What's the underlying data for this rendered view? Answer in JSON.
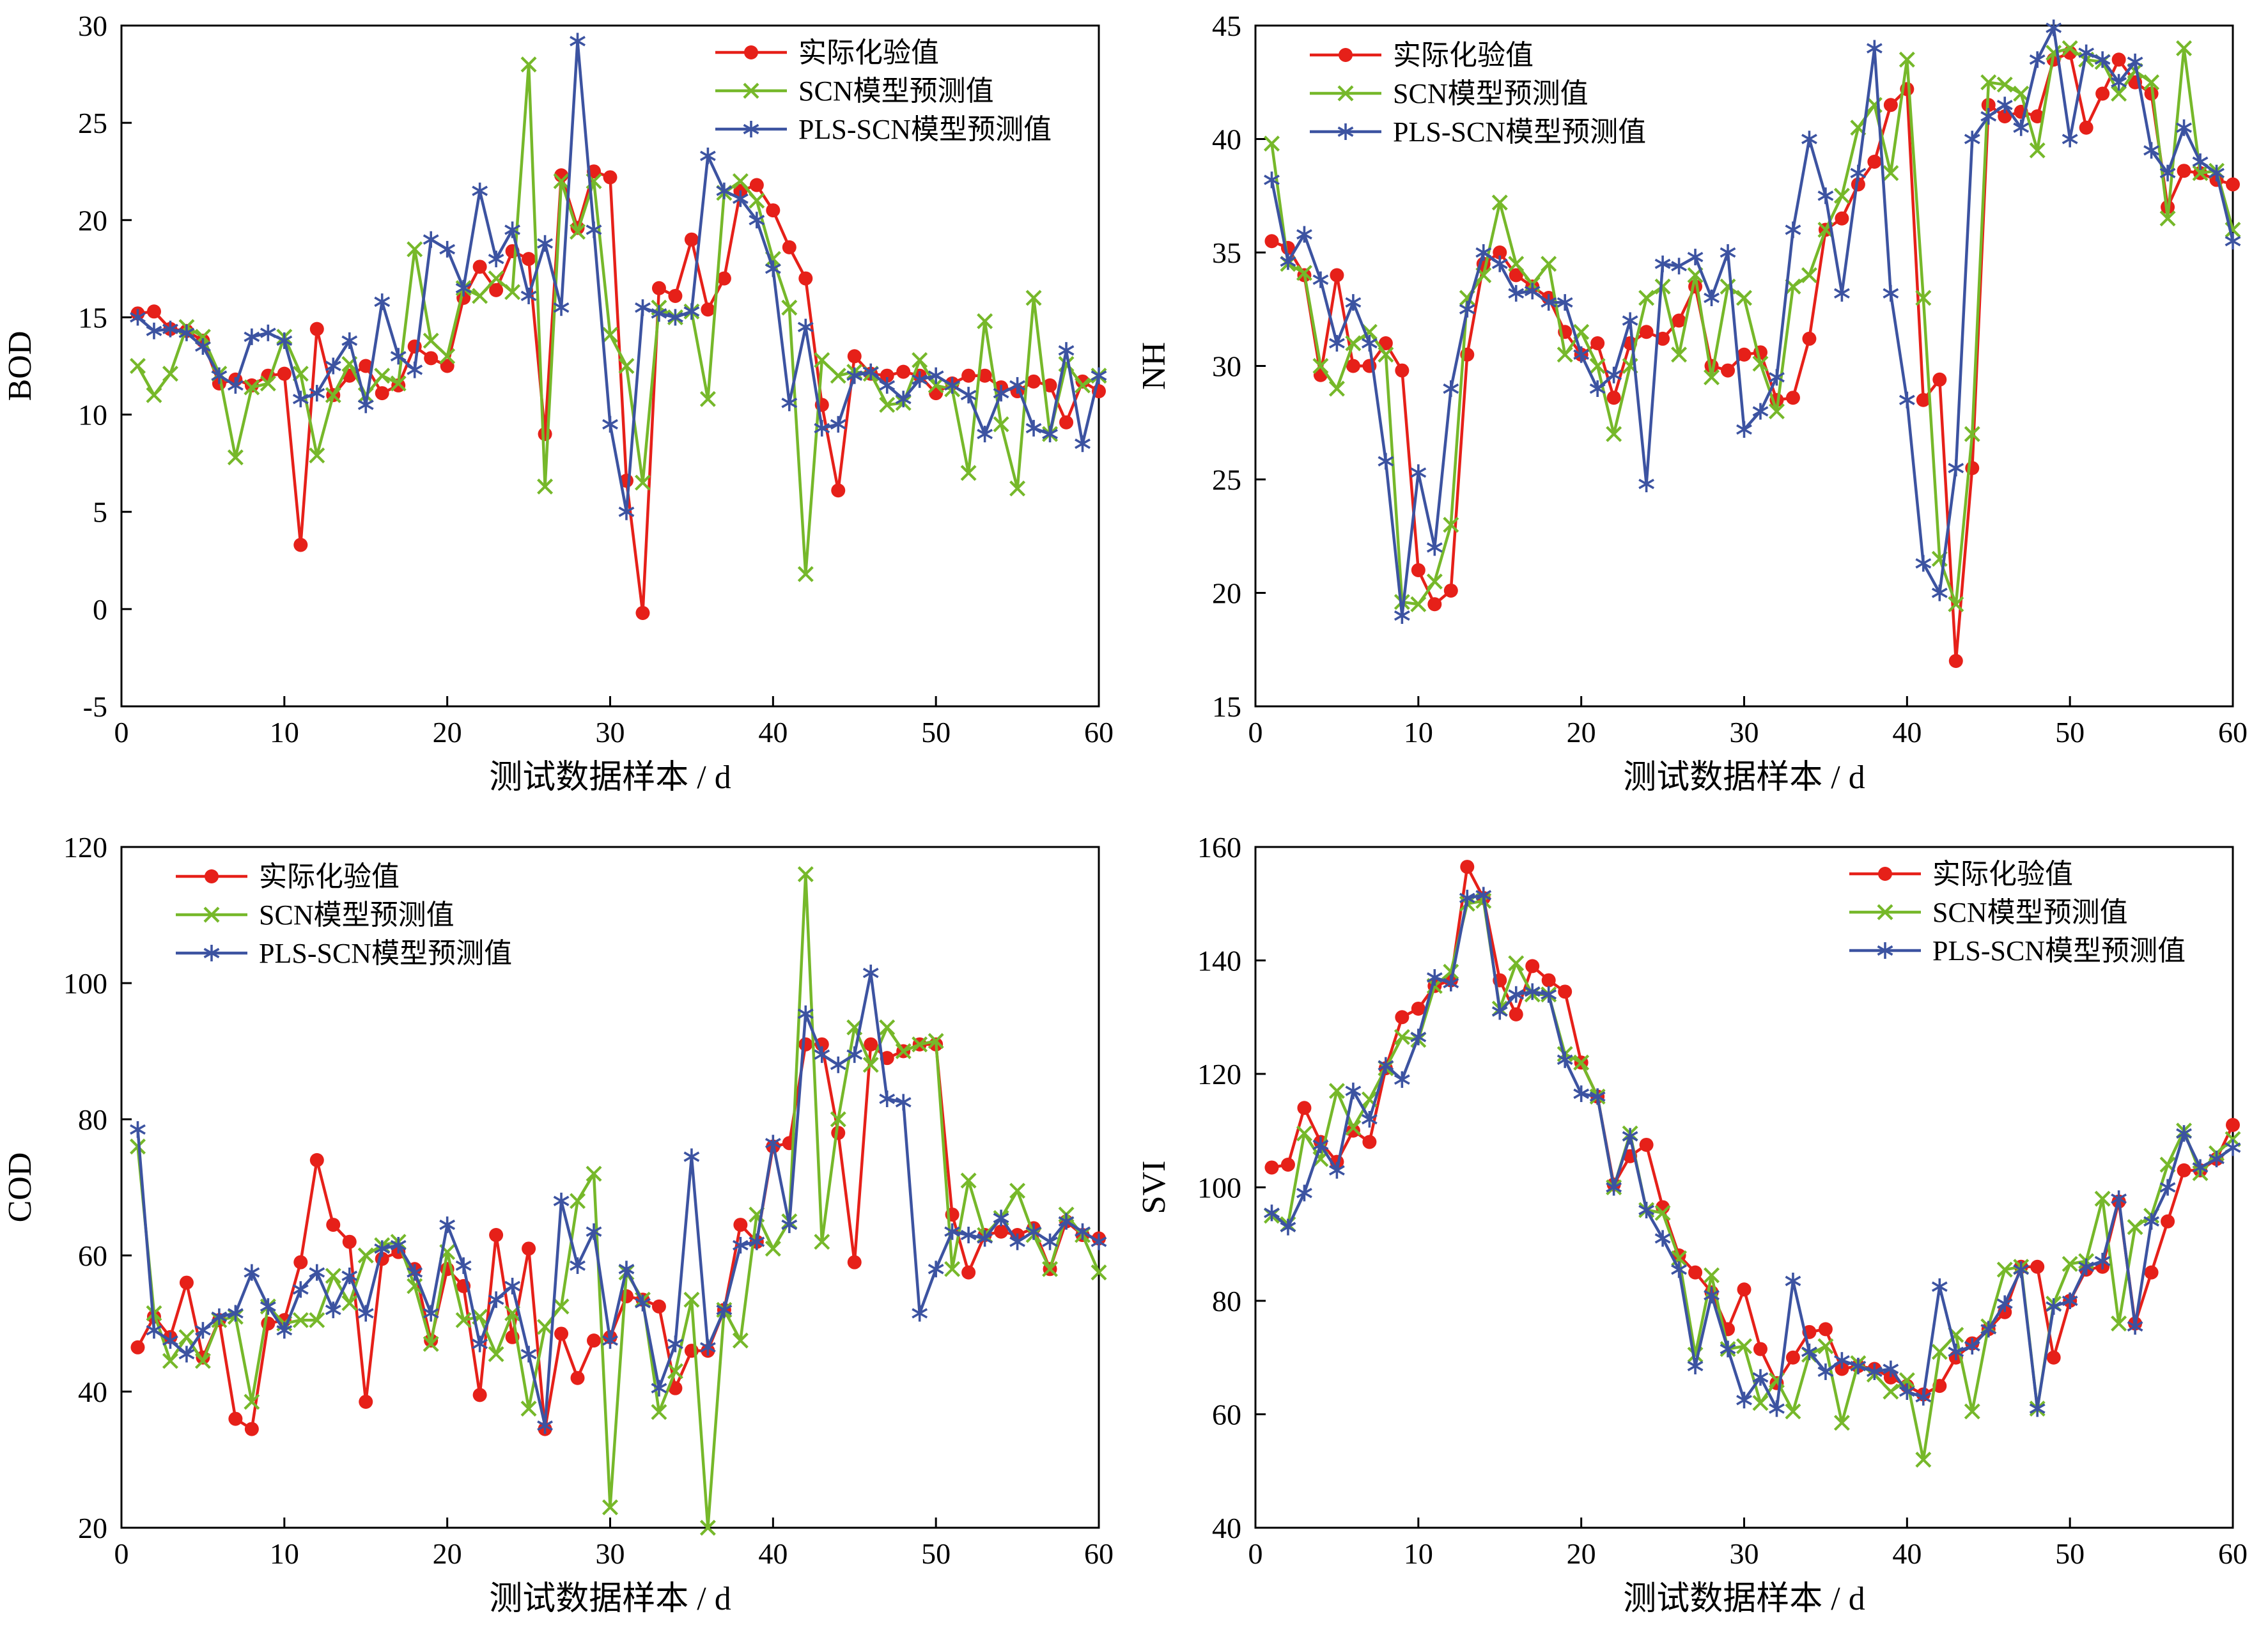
{
  "page": {
    "background": "#ffffff"
  },
  "colors": {
    "actual": "#e62019",
    "scn": "#76b82a",
    "pls_scn": "#3c53a1",
    "axis": "#000000"
  },
  "series_labels": {
    "actual": "实际化验值",
    "scn": "SCN模型预测值",
    "pls_scn": "PLS-SCN模型预测值"
  },
  "xlabel": "测试数据样本 / d",
  "chart_data": [
    {
      "id": "bod",
      "type": "line",
      "title": "",
      "ylabel": "BOD",
      "xlabel": "测试数据样本 / d",
      "xlim": [
        0,
        60
      ],
      "ylim": [
        -5,
        30
      ],
      "xticks": [
        0,
        10,
        20,
        30,
        40,
        50,
        60
      ],
      "yticks": [
        -5,
        0,
        5,
        10,
        15,
        20,
        25,
        30
      ],
      "grid": false,
      "legend_position": "top-right",
      "x_start": 1,
      "series": [
        {
          "name": "实际化验值",
          "color": "#e62019",
          "marker": "circle",
          "values": [
            15.2,
            15.3,
            14.4,
            14.3,
            13.8,
            11.6,
            11.8,
            11.5,
            12.0,
            12.1,
            3.3,
            14.4,
            11.0,
            12.0,
            12.5,
            11.1,
            11.5,
            13.5,
            12.9,
            12.5,
            16.0,
            17.6,
            16.4,
            18.4,
            18.0,
            9.0,
            22.3,
            19.6,
            22.5,
            22.2,
            6.6,
            -0.2,
            16.5,
            16.1,
            19.0,
            15.4,
            17.0,
            21.5,
            21.8,
            20.5,
            18.6,
            17.0,
            10.5,
            6.1,
            13.0,
            12.1,
            12.0,
            12.2,
            12.0,
            11.1,
            11.6,
            12.0,
            12.0,
            11.4,
            11.2,
            11.7,
            11.5,
            9.6,
            11.7,
            11.2
          ]
        },
        {
          "name": "SCN模型预测值",
          "color": "#76b82a",
          "marker": "x",
          "values": [
            12.5,
            11.0,
            12.1,
            14.5,
            14.0,
            12.1,
            7.8,
            11.4,
            11.6,
            14.0,
            12.1,
            7.9,
            11.0,
            12.6,
            11.0,
            12.0,
            11.6,
            18.5,
            13.8,
            13.0,
            16.5,
            16.1,
            17.0,
            16.3,
            28.0,
            6.3,
            22.0,
            19.4,
            22.0,
            14.1,
            12.5,
            6.5,
            15.5,
            15.0,
            15.3,
            10.8,
            21.4,
            22.0,
            21.0,
            18.0,
            15.5,
            1.8,
            12.8,
            12.0,
            12.2,
            12.1,
            10.5,
            10.6,
            12.8,
            11.5,
            11.3,
            7.0,
            14.8,
            9.5,
            6.2,
            16.0,
            9.0,
            12.6,
            11.5,
            12.0
          ]
        },
        {
          "name": "PLS-SCN模型预测值",
          "color": "#3c53a1",
          "marker": "asterisk",
          "values": [
            15.0,
            14.3,
            14.4,
            14.2,
            13.5,
            12.0,
            11.5,
            14.0,
            14.2,
            13.8,
            10.8,
            11.1,
            12.5,
            13.8,
            10.5,
            15.8,
            13.0,
            12.3,
            19.0,
            18.5,
            16.5,
            21.5,
            18.0,
            19.5,
            16.1,
            18.8,
            15.5,
            29.2,
            19.5,
            9.5,
            5.0,
            15.5,
            15.2,
            15.0,
            15.3,
            23.3,
            21.5,
            21.1,
            20.0,
            17.5,
            10.6,
            14.5,
            9.3,
            9.5,
            12.0,
            12.2,
            11.5,
            10.8,
            11.8,
            12.0,
            11.5,
            11.0,
            9.0,
            11.1,
            11.5,
            9.3,
            9.0,
            13.3,
            8.5,
            12.0
          ]
        }
      ]
    },
    {
      "id": "nh",
      "type": "line",
      "title": "",
      "ylabel": "NH",
      "xlabel": "测试数据样本 / d",
      "xlim": [
        0,
        60
      ],
      "ylim": [
        15,
        45
      ],
      "xticks": [
        0,
        10,
        20,
        30,
        40,
        50,
        60
      ],
      "yticks": [
        15,
        20,
        25,
        30,
        35,
        40,
        45
      ],
      "grid": false,
      "legend_position": "top-left",
      "x_start": 1,
      "series": [
        {
          "name": "实际化验值",
          "color": "#e62019",
          "marker": "circle",
          "values": [
            35.5,
            35.2,
            34.0,
            29.6,
            34.0,
            30.0,
            30.0,
            31.0,
            29.8,
            21.0,
            19.5,
            20.1,
            30.5,
            34.5,
            35.0,
            34.0,
            33.5,
            33.0,
            31.5,
            30.5,
            31.0,
            28.6,
            31.0,
            31.5,
            31.2,
            32.0,
            33.5,
            30.0,
            29.8,
            30.5,
            30.6,
            28.5,
            28.6,
            31.2,
            36.0,
            36.5,
            38.0,
            39.0,
            41.5,
            42.2,
            28.5,
            29.4,
            17.0,
            25.5,
            41.5,
            41.0,
            41.2,
            41.0,
            43.5,
            43.8,
            40.5,
            42.0,
            43.5,
            42.5,
            42.0,
            37.0,
            38.6,
            38.5,
            38.2,
            38.0
          ]
        },
        {
          "name": "SCN模型预测值",
          "color": "#76b82a",
          "marker": "x",
          "values": [
            39.8,
            34.5,
            34.1,
            30.0,
            29.0,
            31.0,
            31.5,
            30.5,
            19.6,
            19.5,
            20.5,
            23.0,
            33.0,
            34.0,
            37.2,
            34.5,
            33.6,
            34.5,
            30.5,
            31.5,
            30.0,
            27.0,
            30.0,
            33.0,
            33.5,
            30.5,
            34.0,
            29.5,
            33.5,
            33.0,
            30.1,
            28.0,
            33.5,
            34.0,
            36.0,
            37.5,
            40.5,
            41.5,
            38.5,
            43.5,
            33.0,
            21.5,
            19.5,
            27.0,
            42.5,
            42.4,
            42.0,
            39.5,
            43.8,
            44.0,
            43.5,
            43.4,
            42.0,
            43.0,
            42.5,
            36.5,
            44.0,
            38.5,
            38.6,
            36.0
          ]
        },
        {
          "name": "PLS-SCN模型预测值",
          "color": "#3c53a1",
          "marker": "asterisk",
          "values": [
            38.2,
            34.6,
            35.8,
            33.8,
            31.0,
            32.8,
            31.0,
            25.8,
            19.0,
            25.3,
            22.0,
            29.0,
            32.5,
            35.0,
            34.5,
            33.2,
            33.3,
            32.8,
            32.8,
            30.5,
            29.0,
            29.6,
            32.0,
            24.8,
            34.5,
            34.4,
            34.8,
            33.0,
            35.0,
            27.2,
            28.0,
            29.5,
            36.0,
            40.0,
            37.5,
            33.2,
            38.5,
            44.0,
            33.2,
            28.5,
            21.3,
            20.0,
            25.5,
            40.0,
            41.0,
            41.5,
            40.5,
            43.5,
            44.9,
            40.0,
            43.8,
            43.5,
            42.5,
            43.4,
            39.5,
            38.5,
            40.5,
            39.0,
            38.5,
            35.5
          ]
        }
      ]
    },
    {
      "id": "cod",
      "type": "line",
      "title": "",
      "ylabel": "COD",
      "xlabel": "测试数据样本 / d",
      "xlim": [
        0,
        60
      ],
      "ylim": [
        20,
        120
      ],
      "xticks": [
        0,
        10,
        20,
        30,
        40,
        50,
        60
      ],
      "yticks": [
        20,
        40,
        60,
        80,
        100,
        120
      ],
      "grid": false,
      "legend_position": "top-left",
      "x_start": 1,
      "series": [
        {
          "name": "实际化验值",
          "color": "#e62019",
          "marker": "circle",
          "values": [
            46.5,
            51.0,
            48.0,
            56.0,
            45.0,
            50.5,
            36.0,
            34.5,
            50.0,
            50.5,
            59.0,
            74.0,
            64.5,
            62.0,
            38.5,
            59.5,
            60.5,
            58.0,
            47.5,
            58.0,
            55.5,
            39.5,
            63.0,
            48.0,
            61.0,
            34.5,
            48.5,
            42.0,
            47.5,
            48.0,
            54.0,
            53.5,
            52.5,
            40.5,
            46.0,
            46.0,
            52.0,
            64.5,
            62.0,
            76.0,
            76.5,
            91.0,
            91.0,
            78.0,
            59.0,
            91.0,
            89.0,
            90.0,
            91.0,
            91.0,
            66.0,
            57.5,
            63.0,
            63.5,
            63.0,
            64.0,
            58.0,
            65.0,
            63.0,
            62.5
          ]
        },
        {
          "name": "SCN模型预测值",
          "color": "#76b82a",
          "marker": "x",
          "values": [
            76.0,
            51.5,
            44.5,
            48.0,
            44.5,
            50.5,
            51.0,
            38.5,
            52.5,
            50.0,
            50.5,
            50.5,
            57.0,
            53.0,
            60.0,
            61.5,
            62.0,
            55.5,
            47.0,
            60.5,
            50.5,
            51.0,
            45.5,
            51.5,
            37.5,
            49.5,
            52.5,
            68.0,
            72.0,
            23.0,
            57.5,
            53.5,
            37.0,
            43.0,
            53.5,
            20.0,
            52.0,
            47.5,
            66.0,
            61.0,
            65.0,
            116.0,
            62.0,
            80.0,
            93.5,
            88.0,
            93.5,
            90.0,
            91.0,
            91.5,
            58.0,
            71.0,
            63.0,
            65.5,
            69.5,
            63.0,
            58.0,
            66.0,
            63.0,
            57.5
          ]
        },
        {
          "name": "PLS-SCN模型预测值",
          "color": "#3c53a1",
          "marker": "asterisk",
          "values": [
            78.5,
            49.0,
            47.5,
            45.5,
            49.0,
            51.0,
            51.5,
            57.5,
            52.5,
            49.0,
            55.0,
            57.5,
            52.0,
            57.0,
            51.5,
            61.0,
            61.5,
            57.5,
            51.5,
            64.5,
            58.5,
            47.0,
            53.5,
            55.5,
            45.5,
            35.0,
            68.0,
            58.5,
            63.5,
            47.5,
            58.0,
            53.0,
            40.5,
            47.0,
            74.5,
            46.5,
            52.0,
            61.5,
            62.0,
            76.5,
            64.5,
            95.5,
            89.5,
            88.0,
            89.5,
            101.5,
            83.0,
            82.5,
            51.5,
            58.0,
            63.5,
            63.0,
            62.5,
            65.5,
            62.0,
            63.5,
            62.0,
            65.0,
            63.5,
            62.0
          ]
        }
      ]
    },
    {
      "id": "svi",
      "type": "line",
      "title": "",
      "ylabel": "SVI",
      "xlabel": "测试数据样本 / d",
      "xlim": [
        0,
        60
      ],
      "ylim": [
        40,
        160
      ],
      "xticks": [
        0,
        10,
        20,
        30,
        40,
        50,
        60
      ],
      "yticks": [
        40,
        60,
        80,
        100,
        120,
        140,
        160
      ],
      "grid": false,
      "legend_position": "top-right",
      "x_start": 1,
      "series": [
        {
          "name": "实际化验值",
          "color": "#e62019",
          "marker": "circle",
          "values": [
            103.5,
            104.0,
            114.0,
            108.0,
            104.5,
            110.0,
            108.0,
            121.0,
            130.0,
            131.5,
            135.5,
            136.5,
            156.5,
            151.0,
            136.5,
            130.5,
            139.0,
            136.5,
            134.5,
            122.0,
            116.0,
            100.5,
            105.5,
            107.5,
            96.5,
            88.0,
            85.0,
            81.5,
            75.0,
            82.0,
            71.5,
            65.5,
            70.0,
            74.5,
            75.0,
            68.0,
            68.5,
            68.0,
            66.5,
            65.0,
            63.5,
            65.0,
            70.0,
            72.5,
            75.0,
            78.0,
            86.0,
            86.0,
            70.0,
            80.0,
            85.5,
            86.0,
            97.5,
            76.0,
            85.0,
            94.0,
            103.0,
            103.0,
            105.0,
            111.0
          ]
        },
        {
          "name": "SCN模型预测值",
          "color": "#76b82a",
          "marker": "x",
          "values": [
            95.0,
            93.5,
            109.5,
            105.0,
            117.0,
            110.5,
            115.5,
            121.0,
            126.5,
            126.0,
            135.5,
            138.0,
            150.0,
            150.5,
            131.5,
            139.5,
            134.0,
            134.0,
            123.5,
            122.0,
            116.0,
            100.0,
            109.5,
            96.0,
            95.5,
            87.5,
            70.5,
            84.5,
            71.5,
            72.0,
            62.0,
            66.0,
            60.5,
            70.5,
            72.0,
            58.5,
            69.0,
            67.0,
            64.0,
            66.0,
            52.0,
            71.0,
            74.0,
            60.5,
            75.5,
            85.5,
            86.0,
            61.0,
            79.5,
            86.5,
            87.0,
            98.0,
            76.0,
            93.0,
            95.0,
            104.0,
            110.0,
            102.5,
            106.0,
            108.5
          ]
        },
        {
          "name": "PLS-SCN模型预测值",
          "color": "#3c53a1",
          "marker": "asterisk",
          "values": [
            95.5,
            93.0,
            99.0,
            107.5,
            103.0,
            117.0,
            112.0,
            121.5,
            119.0,
            126.5,
            137.0,
            136.0,
            151.0,
            151.5,
            131.0,
            134.0,
            134.5,
            134.0,
            122.5,
            116.5,
            116.0,
            100.0,
            109.0,
            96.0,
            91.0,
            85.5,
            68.5,
            81.0,
            71.5,
            62.5,
            66.5,
            61.0,
            83.5,
            71.0,
            67.5,
            69.5,
            68.5,
            67.5,
            68.0,
            64.0,
            63.0,
            82.5,
            71.0,
            72.0,
            75.0,
            79.5,
            85.5,
            61.0,
            79.0,
            80.0,
            86.0,
            87.0,
            98.0,
            75.5,
            94.0,
            100.0,
            109.5,
            103.5,
            105.0,
            107.0
          ]
        }
      ]
    }
  ]
}
